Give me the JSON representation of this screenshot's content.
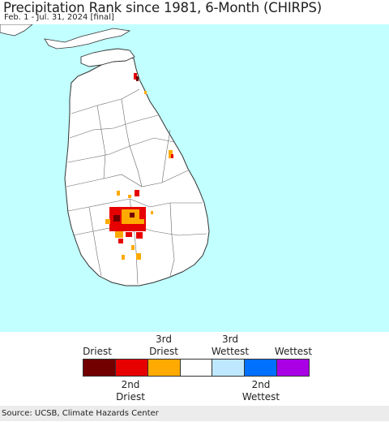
{
  "header": {
    "title": "Precipitation Rank since 1981, 6-Month (CHIRPS)",
    "subtitle": "Feb. 1 - Jul. 31, 2024 [final]"
  },
  "legend": {
    "top_labels": [
      "Driest",
      "3rd\nDriest",
      "3rd\nWettest",
      "Wettest"
    ],
    "bottom_labels": [
      "2nd\nDriest",
      "2nd\nWettest"
    ],
    "swatches": [
      {
        "rank": "Driest",
        "color": "#730000"
      },
      {
        "rank": "2nd Driest",
        "color": "#e60000"
      },
      {
        "rank": "3rd Driest",
        "color": "#ffaa00"
      },
      {
        "rank": "Normal",
        "color": "#ffffff"
      },
      {
        "rank": "3rd Wettest",
        "color": "#bee8ff"
      },
      {
        "rank": "2nd Wettest",
        "color": "#0070ff"
      },
      {
        "rank": "Wettest",
        "color": "#a900e6"
      }
    ]
  },
  "source": "Source: UCSB, Climate Hazards Center",
  "colors": {
    "ocean": "#c2ffff",
    "land": "#ffffff",
    "boundary": "#555555"
  }
}
